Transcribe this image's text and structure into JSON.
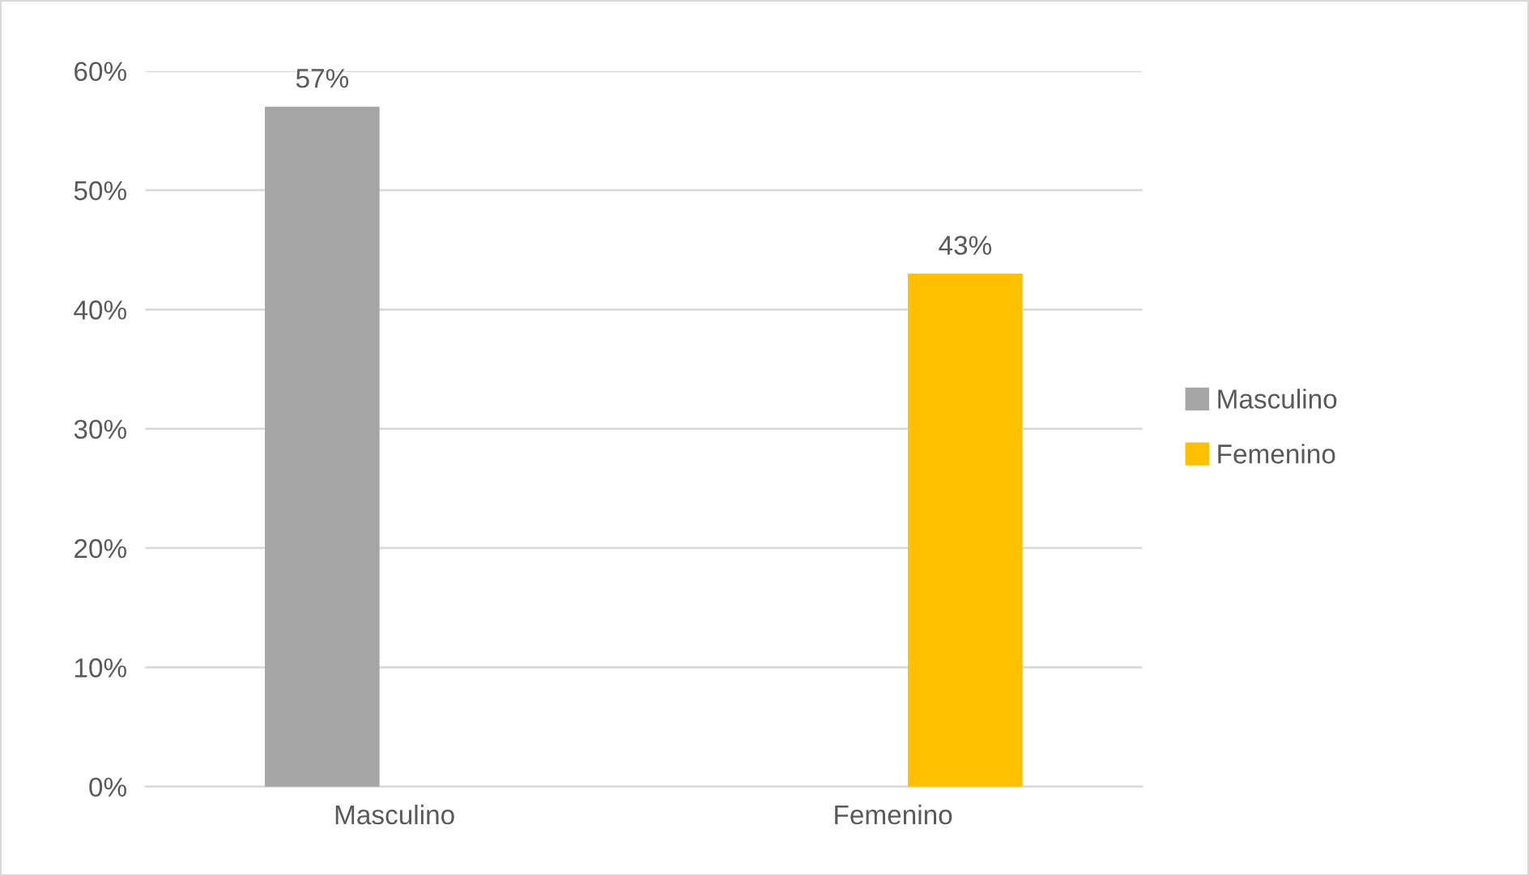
{
  "chart_data": {
    "type": "bar",
    "categories": [
      "Masculino",
      "Femenino"
    ],
    "series": [
      {
        "name": "Masculino",
        "color": "#a5a5a5",
        "values": [
          57,
          null
        ],
        "value_labels": [
          "57%",
          null
        ]
      },
      {
        "name": "Femenino",
        "color": "#ffc000",
        "values": [
          null,
          43
        ],
        "value_labels": [
          null,
          "43%"
        ]
      }
    ],
    "ylim": [
      0,
      60
    ],
    "yticks": [
      {
        "value": 0,
        "label": "0%"
      },
      {
        "value": 10,
        "label": "10%"
      },
      {
        "value": 20,
        "label": "20%"
      },
      {
        "value": 30,
        "label": "30%"
      },
      {
        "value": 40,
        "label": "40%"
      },
      {
        "value": 50,
        "label": "50%"
      },
      {
        "value": 60,
        "label": "60%"
      }
    ],
    "grid": "y",
    "legend": "right"
  }
}
